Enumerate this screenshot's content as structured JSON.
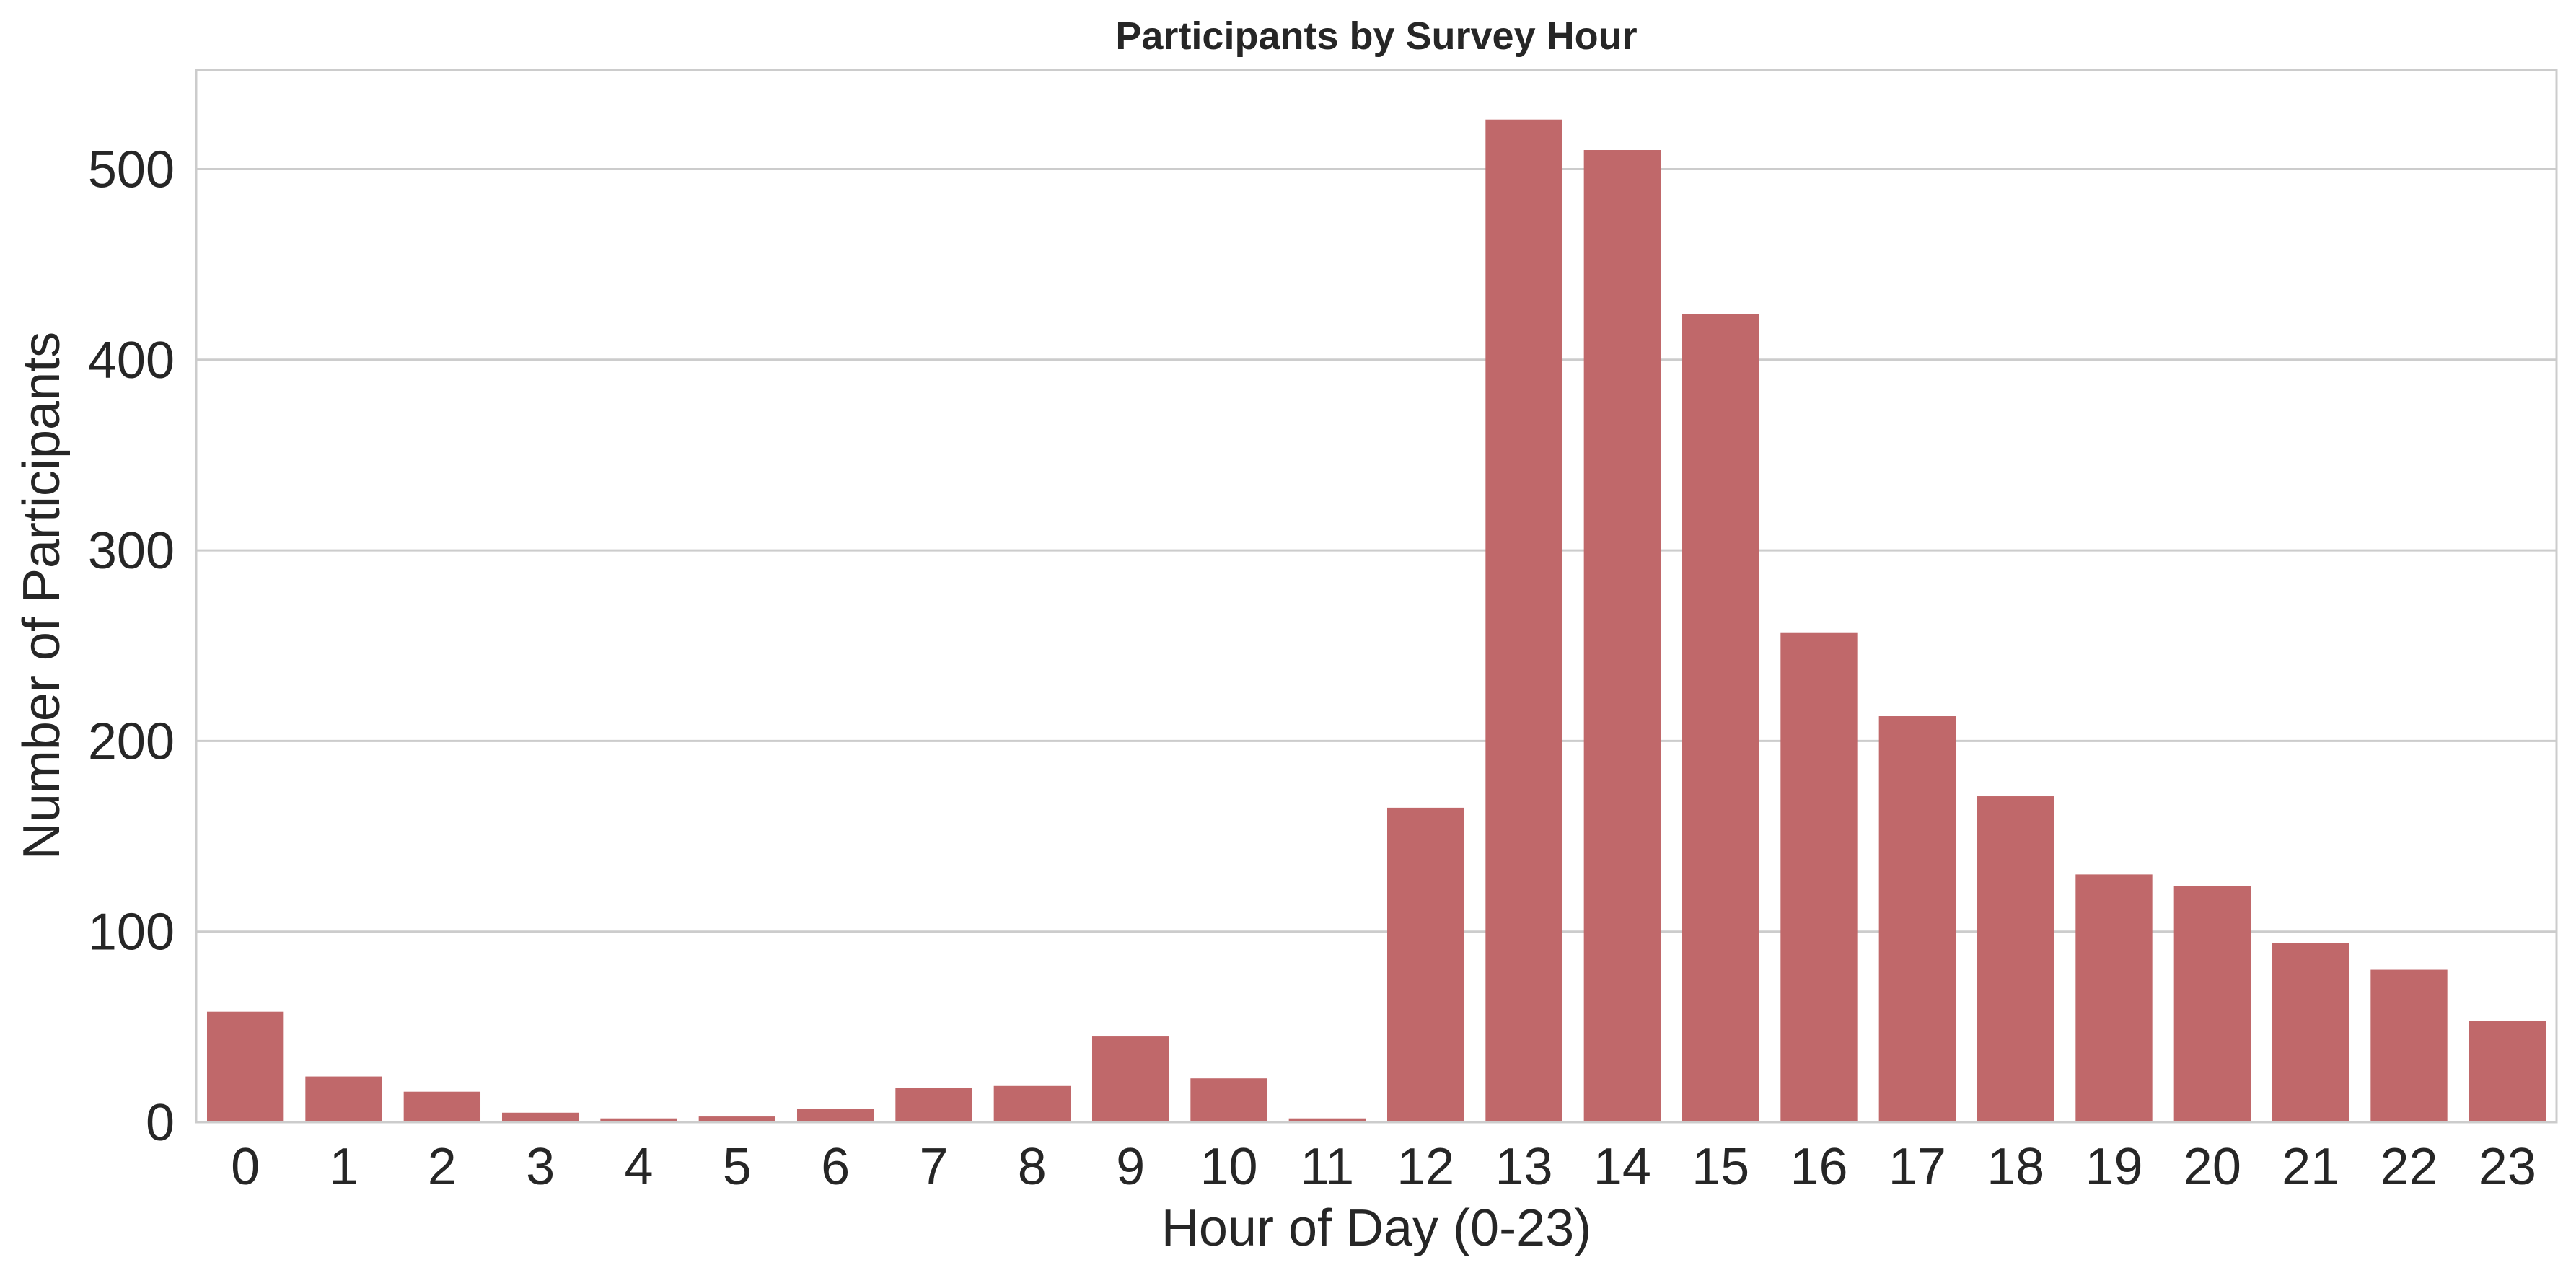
{
  "chart_data": {
    "type": "bar",
    "title": "Participants by Survey Hour",
    "xlabel": "Hour of Day (0-23)",
    "ylabel": "Number of Participants",
    "categories": [
      "0",
      "1",
      "2",
      "3",
      "4",
      "5",
      "6",
      "7",
      "8",
      "9",
      "10",
      "11",
      "12",
      "13",
      "14",
      "15",
      "16",
      "17",
      "18",
      "19",
      "20",
      "21",
      "22",
      "23"
    ],
    "values": [
      58,
      24,
      16,
      5,
      2,
      3,
      7,
      18,
      19,
      45,
      23,
      2,
      165,
      526,
      510,
      424,
      257,
      213,
      171,
      130,
      124,
      94,
      80,
      53
    ],
    "ylim": [
      0,
      552
    ],
    "yticks": [
      0,
      100,
      200,
      300,
      400,
      500
    ],
    "grid": "horizontal",
    "bar_color": "#c0686a",
    "legend": "none"
  }
}
